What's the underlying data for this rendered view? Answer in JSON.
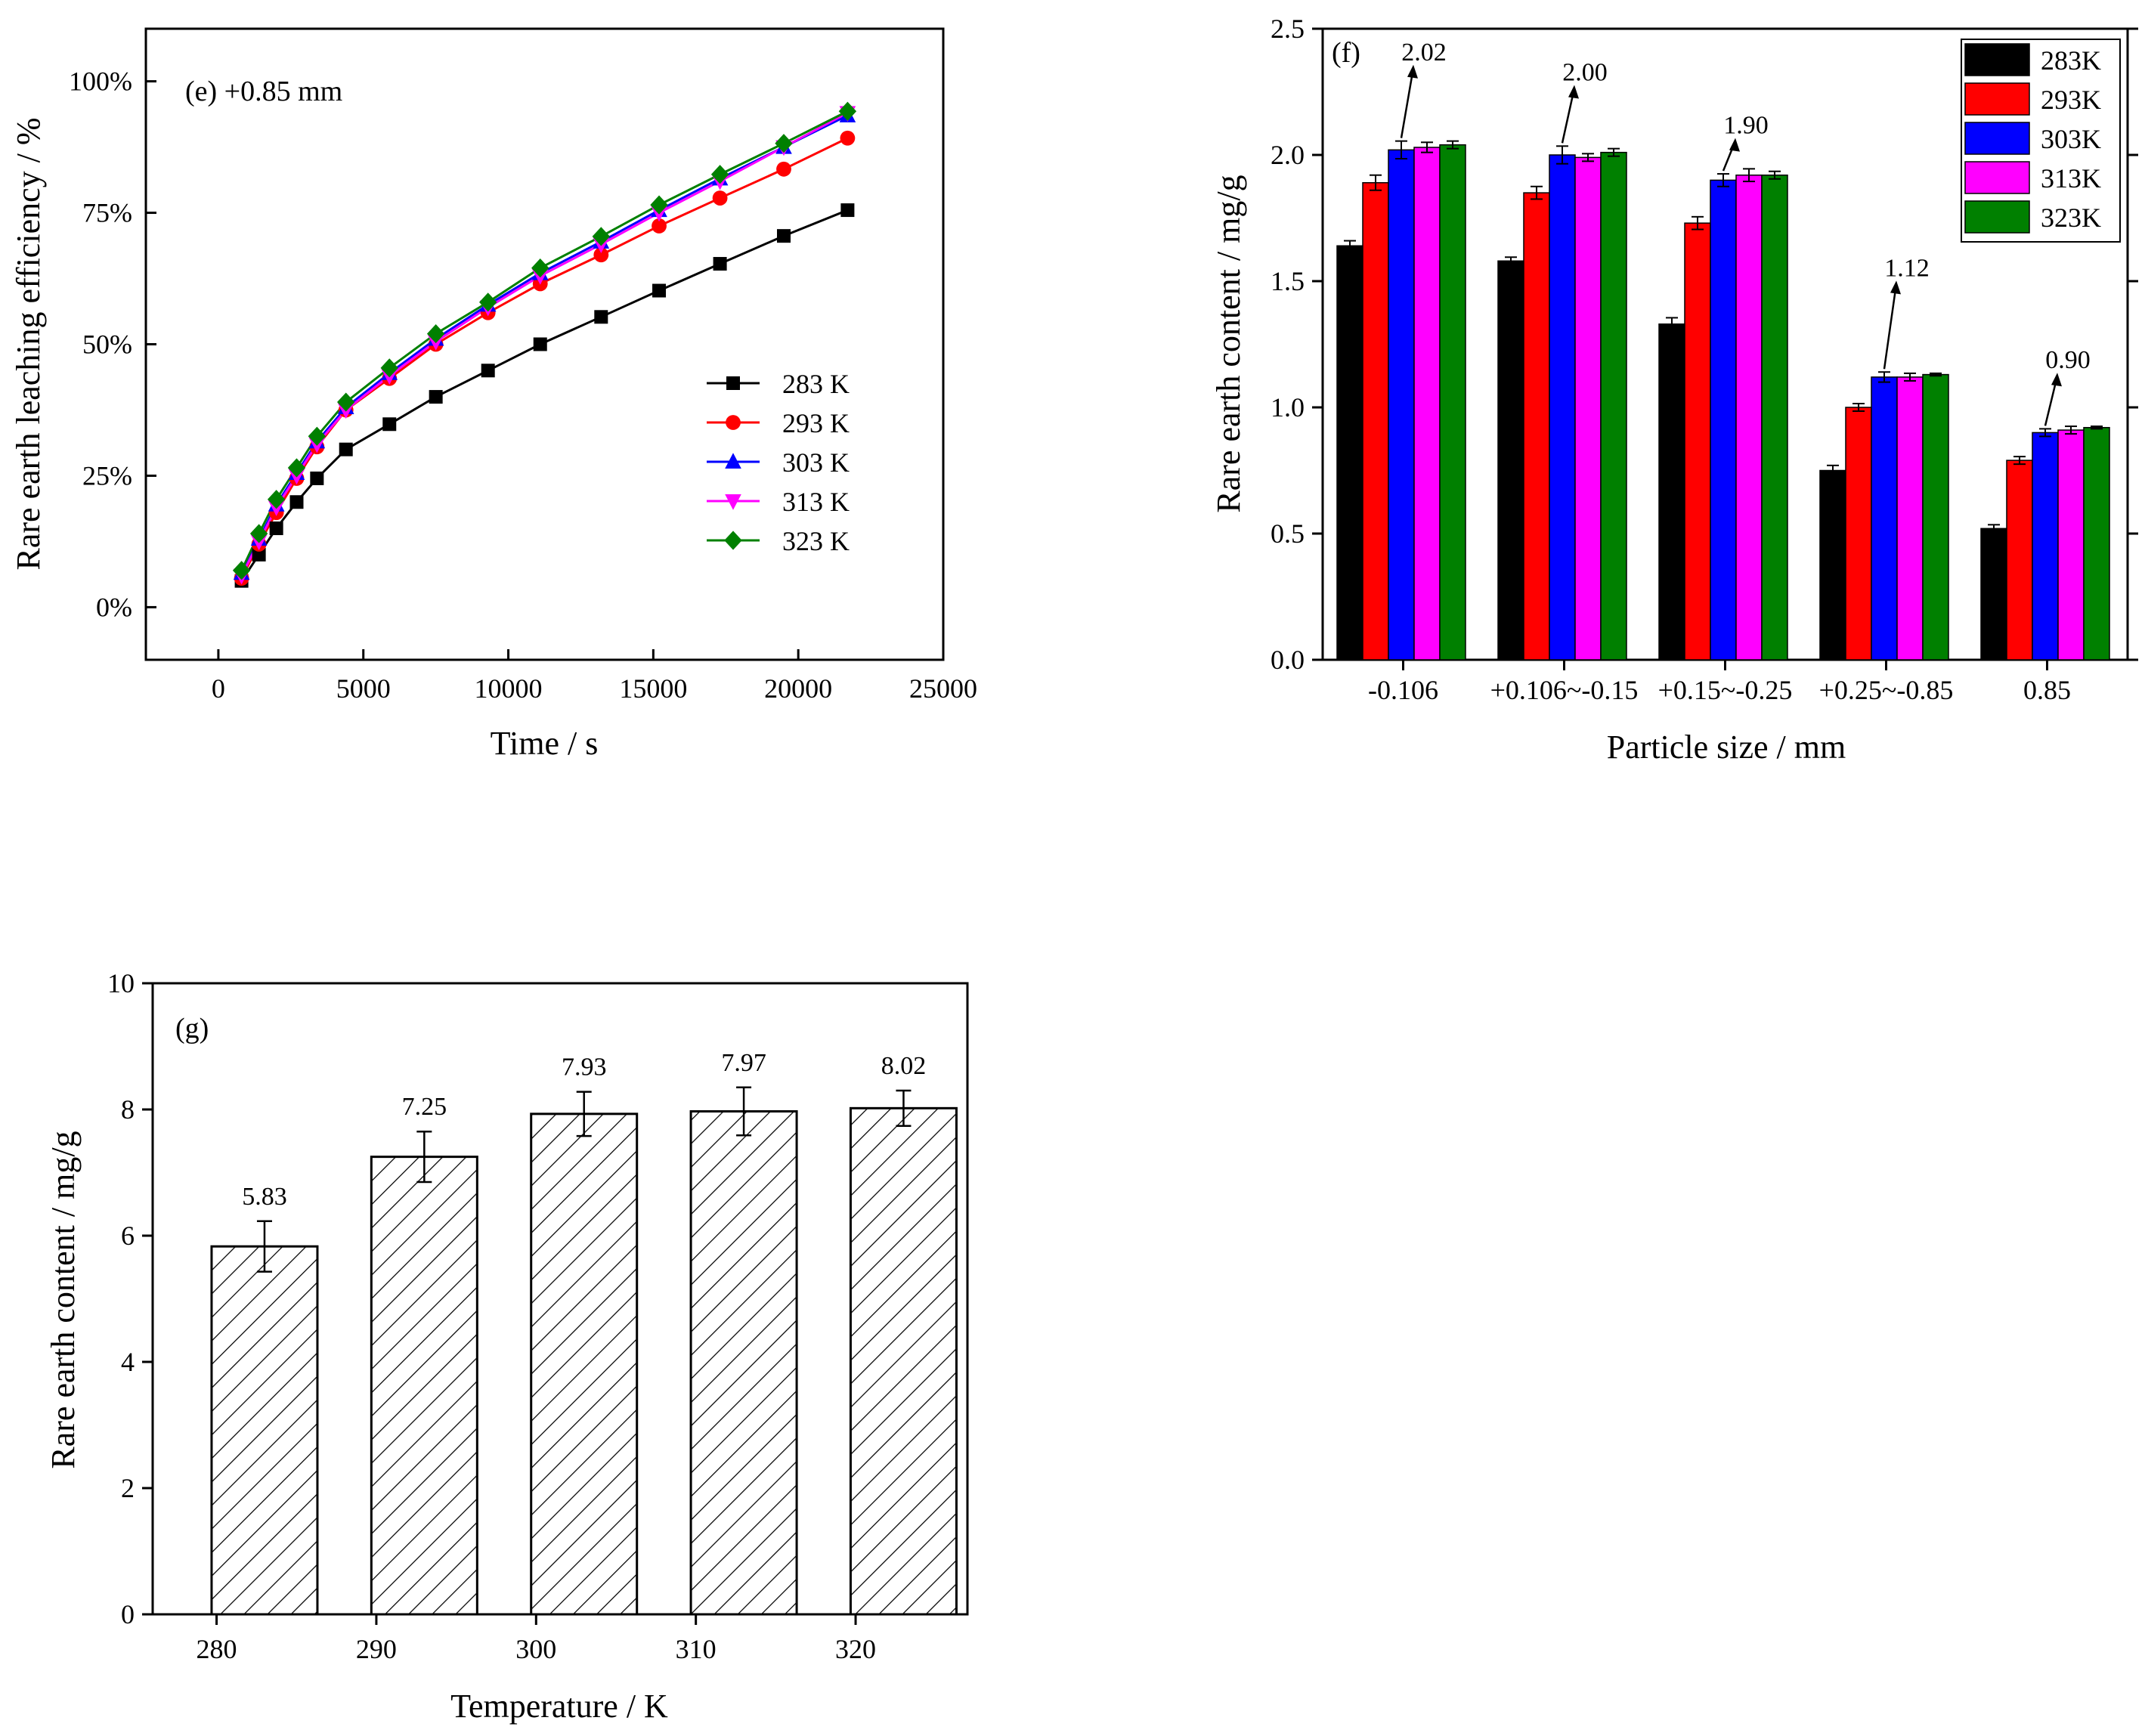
{
  "chart_data": [
    {
      "type": "line",
      "panel": "(e)",
      "title": "(e) +0.85 mm",
      "xlabel": "Time / s",
      "ylabel": "Rare earth leaching efficiency / %",
      "xlim": [
        -2500,
        25000
      ],
      "ylim": [
        -10,
        110
      ],
      "xticks": [
        0,
        5000,
        10000,
        15000,
        20000,
        25000
      ],
      "xtick_labels": [
        "0",
        "5000",
        "10000",
        "15000",
        "20000",
        "25000"
      ],
      "yticks": [
        0,
        25,
        50,
        75,
        100
      ],
      "ytick_labels": [
        "0%",
        "25%",
        "50%",
        "75%",
        "100%"
      ],
      "x": [
        800,
        1400,
        2000,
        2700,
        3400,
        4400,
        5900,
        7500,
        9300,
        11100,
        13200,
        15200,
        17300,
        19500,
        21700
      ],
      "series": [
        {
          "name": "283 K",
          "color": "#000000",
          "marker": "square",
          "values": [
            5,
            10,
            15,
            20,
            24.5,
            30,
            34.8,
            40,
            45,
            50,
            55.2,
            60.2,
            65.3,
            70.6,
            75.5
          ]
        },
        {
          "name": "293 K",
          "color": "#ff0000",
          "marker": "circle",
          "values": [
            5.5,
            12,
            18,
            24.5,
            30.5,
            37.5,
            43.5,
            50,
            56,
            61.5,
            67,
            72.5,
            77.8,
            83.3,
            89.2
          ]
        },
        {
          "name": "303 K",
          "color": "#0000ff",
          "marker": "triangle-up",
          "values": [
            6.5,
            13,
            19.5,
            25.5,
            31.5,
            38,
            44.5,
            51,
            57.5,
            63.5,
            69.5,
            75.5,
            81.5,
            87.5,
            93.5
          ]
        },
        {
          "name": "313 K",
          "color": "#ff00ff",
          "marker": "triangle-down",
          "values": [
            6,
            12.5,
            19,
            25,
            31,
            37.5,
            44,
            50.5,
            57,
            63,
            69,
            75,
            81,
            87.5,
            94
          ]
        },
        {
          "name": "323 K",
          "color": "#008000",
          "marker": "diamond",
          "values": [
            7,
            14,
            20.5,
            26.5,
            32.5,
            39,
            45.5,
            52,
            58,
            64.5,
            70.5,
            76.5,
            82.3,
            88.2,
            94.3
          ]
        }
      ]
    },
    {
      "type": "bar",
      "panel": "(f)",
      "title": "(f)",
      "xlabel": "Particle size / mm",
      "ylabel": "Rare earth content / mg/g",
      "ylim": [
        0,
        2.5
      ],
      "yticks": [
        0,
        0.5,
        1.0,
        1.5,
        2.0,
        2.5
      ],
      "ytick_labels": [
        "0.0",
        "0.5",
        "1.0",
        "1.5",
        "2.0",
        "2.5"
      ],
      "categories": [
        "-0.106",
        "+0.106~-0.15",
        "+0.15~-0.25",
        "+0.25~-0.85",
        "0.85"
      ],
      "series": [
        {
          "name": "283K",
          "color": "#000000",
          "values": [
            1.64,
            1.58,
            1.33,
            0.75,
            0.52
          ],
          "errors": [
            0.02,
            0.015,
            0.025,
            0.02,
            0.015
          ]
        },
        {
          "name": "293K",
          "color": "#ff0000",
          "values": [
            1.89,
            1.85,
            1.73,
            1.0,
            0.79
          ],
          "errors": [
            0.03,
            0.025,
            0.025,
            0.015,
            0.015
          ]
        },
        {
          "name": "303K",
          "color": "#0000ff",
          "values": [
            2.02,
            2.0,
            1.9,
            1.12,
            0.9
          ],
          "errors": [
            0.035,
            0.035,
            0.025,
            0.02,
            0.015
          ]
        },
        {
          "name": "313K",
          "color": "#ff00ff",
          "values": [
            2.03,
            1.99,
            1.92,
            1.12,
            0.91
          ],
          "errors": [
            0.02,
            0.015,
            0.025,
            0.015,
            0.015
          ]
        },
        {
          "name": "323K",
          "color": "#008000",
          "values": [
            2.04,
            2.01,
            1.92,
            1.13,
            0.92
          ],
          "errors": [
            0.015,
            0.015,
            0.015,
            0.005,
            0.005
          ]
        }
      ],
      "annotations": [
        "2.02",
        "2.00",
        "1.90",
        "1.12",
        "0.90"
      ]
    },
    {
      "type": "bar",
      "panel": "(g)",
      "title": "(g)",
      "xlabel": "Temperature / K",
      "ylabel": "Rare earth content / mg/g",
      "xlim": [
        276,
        327
      ],
      "ylim": [
        0,
        10
      ],
      "xticks": [
        280,
        290,
        300,
        310,
        320
      ],
      "xtick_labels": [
        "280",
        "290",
        "300",
        "310",
        "320"
      ],
      "yticks": [
        0,
        2,
        4,
        6,
        8,
        10
      ],
      "ytick_labels": [
        "0",
        "2",
        "4",
        "6",
        "8",
        "10"
      ],
      "x": [
        283,
        293,
        303,
        313,
        323
      ],
      "values": [
        5.83,
        7.25,
        7.93,
        7.97,
        8.02
      ],
      "errors": [
        0.4,
        0.4,
        0.35,
        0.38,
        0.28
      ],
      "value_labels": [
        "5.83",
        "7.25",
        "7.93",
        "7.97",
        "8.02"
      ],
      "fill": "hatched"
    }
  ]
}
